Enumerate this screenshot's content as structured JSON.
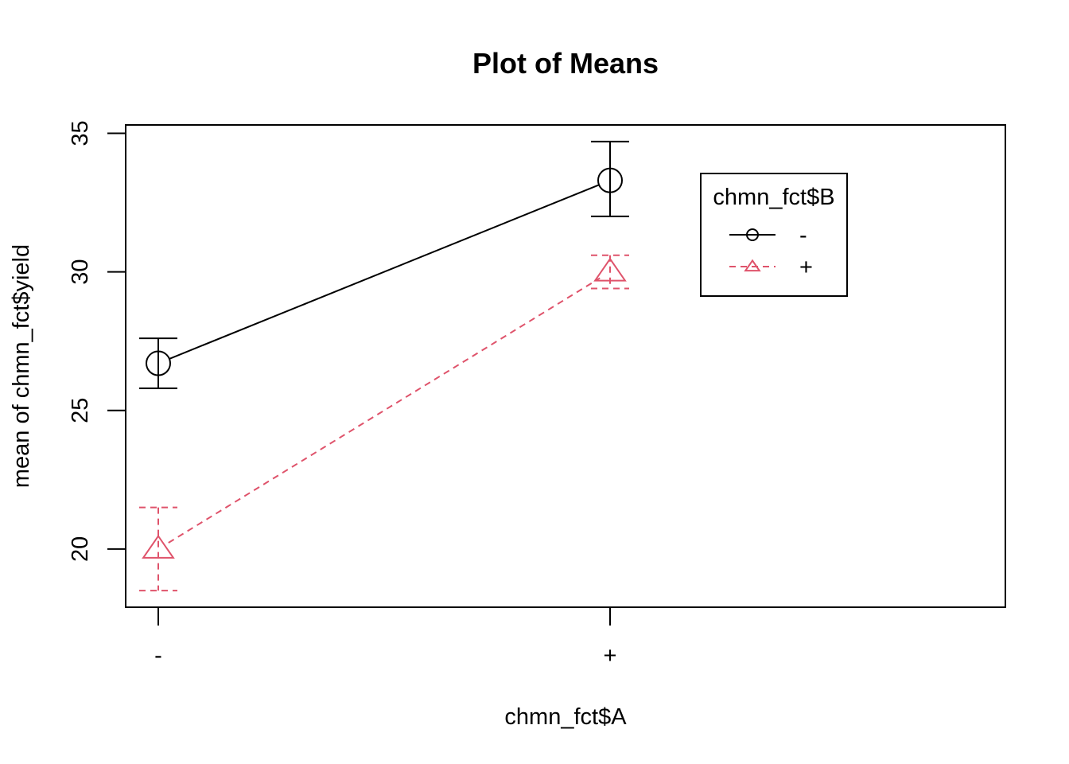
{
  "chart_data": {
    "type": "line",
    "title": "Plot of Means",
    "xlabel": "chmn_fct$A",
    "ylabel": "mean of chmn_fct$yield",
    "categories": [
      "-",
      "+"
    ],
    "ylim": [
      17.9,
      35.3
    ],
    "yticks": [
      20,
      25,
      30,
      35
    ],
    "grid": false,
    "legend": {
      "title": "chmn_fct$B",
      "placement": "top-right"
    },
    "series": [
      {
        "name": "-",
        "color": "#000000",
        "marker": "circle",
        "line": "solid",
        "values": [
          26.7,
          33.3
        ],
        "error_low": [
          25.8,
          32.0
        ],
        "error_high": [
          27.6,
          34.7
        ]
      },
      {
        "name": "+",
        "color": "#DF536B",
        "marker": "triangle",
        "line": "dashed",
        "values": [
          20.0,
          30.0
        ],
        "error_low": [
          18.5,
          29.4
        ],
        "error_high": [
          21.5,
          30.6
        ]
      }
    ]
  }
}
